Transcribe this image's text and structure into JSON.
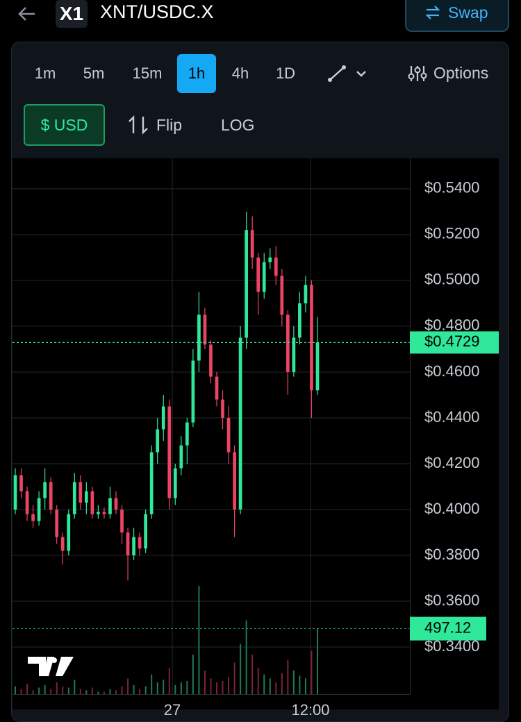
{
  "ui": {
    "pair": "XNT/USDC.X",
    "logo": "X1",
    "swap": "Swap",
    "intervals": [
      "1m",
      "5m",
      "15m",
      "1h",
      "4h",
      "1D"
    ],
    "selected_interval": "1h",
    "options": "Options",
    "currency": "$ USD",
    "flip": "Flip",
    "log": "LOG"
  },
  "chart_data": {
    "type": "candlestick",
    "up_color": "#2fe89a",
    "down_color": "#ec4463",
    "ohlc": [
      [
        0.4,
        0.418,
        0.398,
        0.415
      ],
      [
        0.415,
        0.418,
        0.405,
        0.408
      ],
      [
        0.408,
        0.41,
        0.395,
        0.398
      ],
      [
        0.398,
        0.402,
        0.392,
        0.395
      ],
      [
        0.395,
        0.408,
        0.393,
        0.405
      ],
      [
        0.405,
        0.418,
        0.4,
        0.412
      ],
      [
        0.412,
        0.414,
        0.398,
        0.4
      ],
      [
        0.4,
        0.402,
        0.385,
        0.388
      ],
      [
        0.388,
        0.39,
        0.376,
        0.382
      ],
      [
        0.382,
        0.4,
        0.38,
        0.398
      ],
      [
        0.398,
        0.416,
        0.396,
        0.412
      ],
      [
        0.412,
        0.415,
        0.4,
        0.403
      ],
      [
        0.403,
        0.412,
        0.398,
        0.408
      ],
      [
        0.408,
        0.41,
        0.396,
        0.398
      ],
      [
        0.398,
        0.402,
        0.396,
        0.399
      ],
      [
        0.399,
        0.401,
        0.396,
        0.398
      ],
      [
        0.398,
        0.41,
        0.396,
        0.405
      ],
      [
        0.405,
        0.408,
        0.398,
        0.4
      ],
      [
        0.4,
        0.402,
        0.385,
        0.39
      ],
      [
        0.39,
        0.392,
        0.369,
        0.38
      ],
      [
        0.38,
        0.392,
        0.378,
        0.388
      ],
      [
        0.388,
        0.39,
        0.38,
        0.383
      ],
      [
        0.383,
        0.4,
        0.381,
        0.398
      ],
      [
        0.398,
        0.428,
        0.396,
        0.425
      ],
      [
        0.425,
        0.44,
        0.42,
        0.435
      ],
      [
        0.435,
        0.45,
        0.43,
        0.445
      ],
      [
        0.445,
        0.448,
        0.4,
        0.405
      ],
      [
        0.405,
        0.42,
        0.402,
        0.418
      ],
      [
        0.418,
        0.432,
        0.415,
        0.428
      ],
      [
        0.428,
        0.44,
        0.42,
        0.438
      ],
      [
        0.438,
        0.47,
        0.436,
        0.465
      ],
      [
        0.465,
        0.495,
        0.46,
        0.485
      ],
      [
        0.485,
        0.488,
        0.47,
        0.472
      ],
      [
        0.472,
        0.474,
        0.455,
        0.458
      ],
      [
        0.458,
        0.46,
        0.445,
        0.448
      ],
      [
        0.448,
        0.452,
        0.435,
        0.44
      ],
      [
        0.44,
        0.445,
        0.42,
        0.425
      ],
      [
        0.425,
        0.428,
        0.388,
        0.4
      ],
      [
        0.4,
        0.48,
        0.398,
        0.475
      ],
      [
        0.475,
        0.53,
        0.47,
        0.522
      ],
      [
        0.522,
        0.528,
        0.505,
        0.51
      ],
      [
        0.51,
        0.512,
        0.485,
        0.495
      ],
      [
        0.495,
        0.512,
        0.492,
        0.508
      ],
      [
        0.508,
        0.514,
        0.505,
        0.51
      ],
      [
        0.51,
        0.515,
        0.498,
        0.502
      ],
      [
        0.502,
        0.505,
        0.48,
        0.485
      ],
      [
        0.485,
        0.487,
        0.45,
        0.46
      ],
      [
        0.46,
        0.48,
        0.458,
        0.475
      ],
      [
        0.475,
        0.495,
        0.472,
        0.49
      ],
      [
        0.49,
        0.502,
        0.486,
        0.498
      ],
      [
        0.498,
        0.5,
        0.44,
        0.452
      ],
      [
        0.452,
        0.484,
        0.45,
        0.4729
      ]
    ],
    "volume": [
      60,
      40,
      80,
      30,
      50,
      70,
      40,
      90,
      60,
      50,
      110,
      40,
      30,
      50,
      20,
      20,
      40,
      30,
      60,
      120,
      70,
      40,
      60,
      150,
      90,
      110,
      200,
      70,
      90,
      100,
      300,
      820,
      180,
      120,
      90,
      100,
      130,
      240,
      380,
      560,
      300,
      200,
      150,
      120,
      90,
      160,
      260,
      180,
      140,
      120,
      330,
      497.12
    ],
    "ylim": [
      0.3194,
      0.5533
    ],
    "yticks": [
      {
        "value": 0.34,
        "label": "$0.3400"
      },
      {
        "value": 0.36,
        "label": "$0.3600"
      },
      {
        "value": 0.38,
        "label": "$0.3800"
      },
      {
        "value": 0.4,
        "label": "$0.4000"
      },
      {
        "value": 0.42,
        "label": "$0.4200"
      },
      {
        "value": 0.44,
        "label": "$0.4400"
      },
      {
        "value": 0.46,
        "label": "$0.4600"
      },
      {
        "value": 0.48,
        "label": "$0.4800"
      },
      {
        "value": 0.5,
        "label": "$0.5000"
      },
      {
        "value": 0.52,
        "label": "$0.5200"
      },
      {
        "value": 0.54,
        "label": "$0.5400"
      }
    ],
    "volume_lim": [
      0,
      1000
    ],
    "last_price": {
      "value": 0.4729,
      "label": "$0.4729"
    },
    "last_volume": 497.12,
    "x_labels": [
      "27",
      "12:00"
    ],
    "grid": true
  }
}
